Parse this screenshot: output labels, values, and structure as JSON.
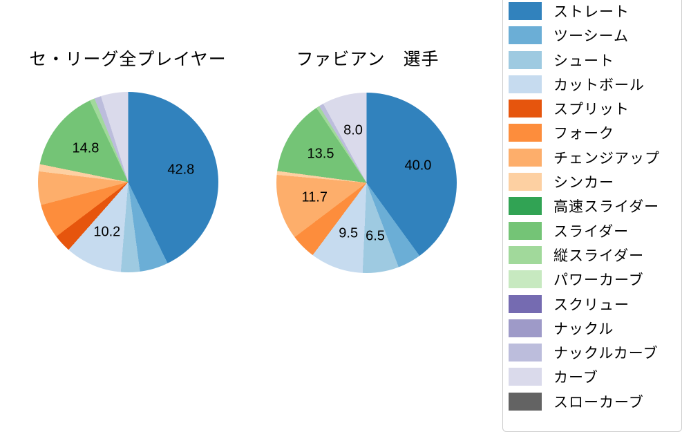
{
  "figure": {
    "background": "#ffffff",
    "text_color": "#000000",
    "legend_border_color": "#cccccc"
  },
  "legend": {
    "position": "right",
    "items": [
      {
        "label": "ストレート",
        "color": "#3182bd"
      },
      {
        "label": "ツーシーム",
        "color": "#6baed6"
      },
      {
        "label": "シュート",
        "color": "#9ecae1"
      },
      {
        "label": "カットボール",
        "color": "#c6dbef"
      },
      {
        "label": "スプリット",
        "color": "#e6550d"
      },
      {
        "label": "フォーク",
        "color": "#fd8d3c"
      },
      {
        "label": "チェンジアップ",
        "color": "#fdae6b"
      },
      {
        "label": "シンカー",
        "color": "#fdd0a2"
      },
      {
        "label": "高速スライダー",
        "color": "#31a354"
      },
      {
        "label": "スライダー",
        "color": "#74c476"
      },
      {
        "label": "縦スライダー",
        "color": "#a1d99b"
      },
      {
        "label": "パワーカーブ",
        "color": "#c7e9c0"
      },
      {
        "label": "スクリュー",
        "color": "#756bb1"
      },
      {
        "label": "ナックル",
        "color": "#9e9ac8"
      },
      {
        "label": "ナックルカーブ",
        "color": "#bcbddc"
      },
      {
        "label": "カーブ",
        "color": "#dadaeb"
      },
      {
        "label": "スローカーブ",
        "color": "#636363"
      }
    ]
  },
  "chart_data": [
    {
      "type": "pie",
      "title": "セ・リーグ全プレイヤー",
      "unit": "percent",
      "start_angle": "top",
      "direction": "clockwise",
      "slices": [
        {
          "name": "ストレート",
          "value": 42.8,
          "label": "42.8"
        },
        {
          "name": "ツーシーム",
          "value": 5.1,
          "label": null
        },
        {
          "name": "シュート",
          "value": 3.4,
          "label": null
        },
        {
          "name": "カットボール",
          "value": 10.2,
          "label": "10.2"
        },
        {
          "name": "スプリット",
          "value": 3.2,
          "label": null
        },
        {
          "name": "フォーク",
          "value": 6.2,
          "label": null
        },
        {
          "name": "チェンジアップ",
          "value": 6.0,
          "label": null
        },
        {
          "name": "シンカー",
          "value": 1.3,
          "label": null
        },
        {
          "name": "スライダー",
          "value": 14.8,
          "label": "14.8"
        },
        {
          "name": "縦スライダー",
          "value": 0.9,
          "label": null
        },
        {
          "name": "ナックルカーブ",
          "value": 1.2,
          "label": null
        },
        {
          "name": "カーブ",
          "value": 4.9,
          "label": null
        }
      ]
    },
    {
      "type": "pie",
      "title": "ファビアン　選手",
      "unit": "percent",
      "start_angle": "top",
      "direction": "clockwise",
      "slices": [
        {
          "name": "ストレート",
          "value": 40.0,
          "label": "40.0"
        },
        {
          "name": "ツーシーム",
          "value": 4.2,
          "label": null
        },
        {
          "name": "シュート",
          "value": 6.5,
          "label": "6.5"
        },
        {
          "name": "カットボール",
          "value": 9.5,
          "label": "9.5"
        },
        {
          "name": "フォーク",
          "value": 4.5,
          "label": null
        },
        {
          "name": "チェンジアップ",
          "value": 11.7,
          "label": "11.7"
        },
        {
          "name": "シンカー",
          "value": 0.7,
          "label": null
        },
        {
          "name": "スライダー",
          "value": 13.5,
          "label": "13.5"
        },
        {
          "name": "縦スライダー",
          "value": 0.6,
          "label": null
        },
        {
          "name": "ナックルカーブ",
          "value": 0.8,
          "label": null
        },
        {
          "name": "カーブ",
          "value": 8.0,
          "label": "8.0"
        }
      ]
    }
  ]
}
